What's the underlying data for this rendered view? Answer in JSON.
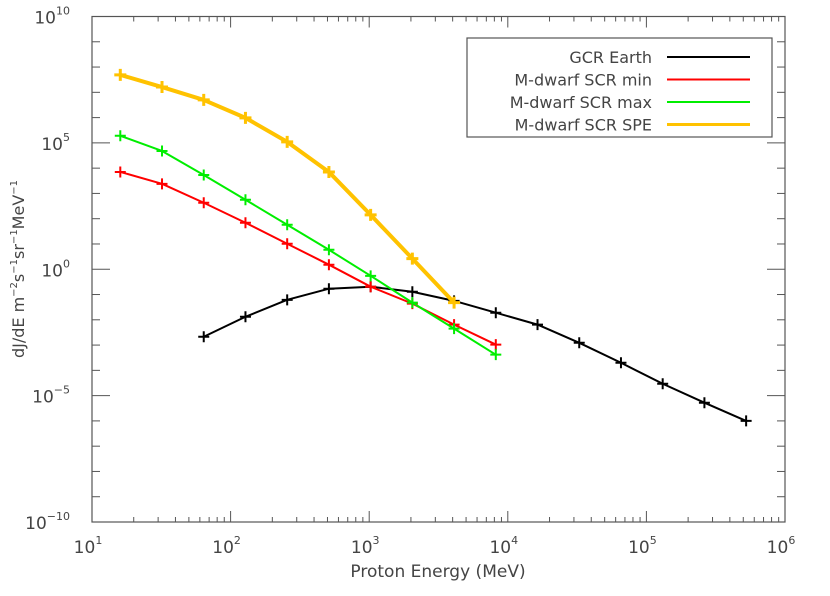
{
  "chart_data": {
    "type": "line",
    "title": "",
    "xlabel": "Proton Energy (MeV)",
    "ylabel": "dJ/dE m⁻²s⁻¹sr⁻¹MeV⁻¹",
    "xscale": "log",
    "yscale": "log",
    "xlim": [
      10,
      1000000
    ],
    "ylim": [
      1e-10,
      10000000000.0
    ],
    "grid": false,
    "legend_position": "upper right",
    "x_ticks": [
      {
        "base": "10",
        "exp": "1",
        "value": 10
      },
      {
        "base": "10",
        "exp": "2",
        "value": 100
      },
      {
        "base": "10",
        "exp": "3",
        "value": 1000
      },
      {
        "base": "10",
        "exp": "4",
        "value": 10000
      },
      {
        "base": "10",
        "exp": "5",
        "value": 100000
      },
      {
        "base": "10",
        "exp": "6",
        "value": 1000000
      }
    ],
    "y_ticks": [
      {
        "base": "10",
        "exp": "10",
        "value": 10000000000.0
      },
      {
        "base": "10",
        "exp": "5",
        "value": 100000.0
      },
      {
        "base": "10",
        "exp": "0",
        "value": 1
      },
      {
        "base": "10",
        "exp": "−5",
        "value": 1e-05
      },
      {
        "base": "10",
        "exp": "−10",
        "value": 1e-10
      }
    ],
    "series": [
      {
        "name": "GCR Earth",
        "color": "#000000",
        "width": 2,
        "x": [
          64,
          128,
          256,
          512,
          1024,
          2048,
          4096,
          8192,
          16384,
          32768,
          65536,
          131072,
          262144,
          524288
        ],
        "log10_y": [
          -2.67,
          -1.88,
          -1.21,
          -0.77,
          -0.69,
          -0.89,
          -1.25,
          -1.72,
          -2.19,
          -2.91,
          -3.7,
          -4.53,
          -5.28,
          -6.0
        ],
        "y": [
          0.0021,
          0.013,
          0.062,
          0.17,
          0.2,
          0.13,
          0.056,
          0.019,
          0.0065,
          0.0012,
          0.0002,
          3e-05,
          5.2e-06,
          1e-06
        ]
      },
      {
        "name": "M-dwarf SCR min",
        "color": "#ff0000",
        "width": 2,
        "x": [
          16,
          32,
          64,
          128,
          256,
          512,
          1024,
          2048,
          4096,
          8192
        ],
        "log10_y": [
          3.85,
          3.38,
          2.63,
          1.84,
          1.01,
          0.18,
          -0.69,
          -1.36,
          -2.19,
          -2.98
        ],
        "y": [
          7100,
          2400,
          430,
          69,
          10,
          1.5,
          0.2,
          0.044,
          0.0065,
          0.001
        ]
      },
      {
        "name": "M-dwarf SCR max",
        "color": "#00ee00",
        "width": 2,
        "x": [
          16,
          32,
          64,
          128,
          256,
          512,
          1024,
          2048,
          4096,
          8192
        ],
        "log10_y": [
          5.28,
          4.68,
          3.73,
          2.75,
          1.76,
          0.77,
          -0.26,
          -1.32,
          -2.35,
          -3.38
        ],
        "y": [
          190000,
          48000,
          5400,
          560,
          58,
          5.9,
          0.55,
          0.048,
          0.0045,
          0.00042
        ]
      },
      {
        "name": "M-dwarf SCR SPE",
        "color": "#ffc200",
        "width": 4,
        "x": [
          16,
          32,
          64,
          128,
          256,
          512,
          1024,
          2048,
          4096
        ],
        "log10_y": [
          7.69,
          7.21,
          6.7,
          5.99,
          5.04,
          3.85,
          2.15,
          0.42,
          -1.32
        ],
        "y": [
          49000000.0,
          16000000.0,
          5000000.0,
          980000.0,
          110000.0,
          7100,
          140,
          2.6,
          0.048
        ]
      }
    ]
  }
}
